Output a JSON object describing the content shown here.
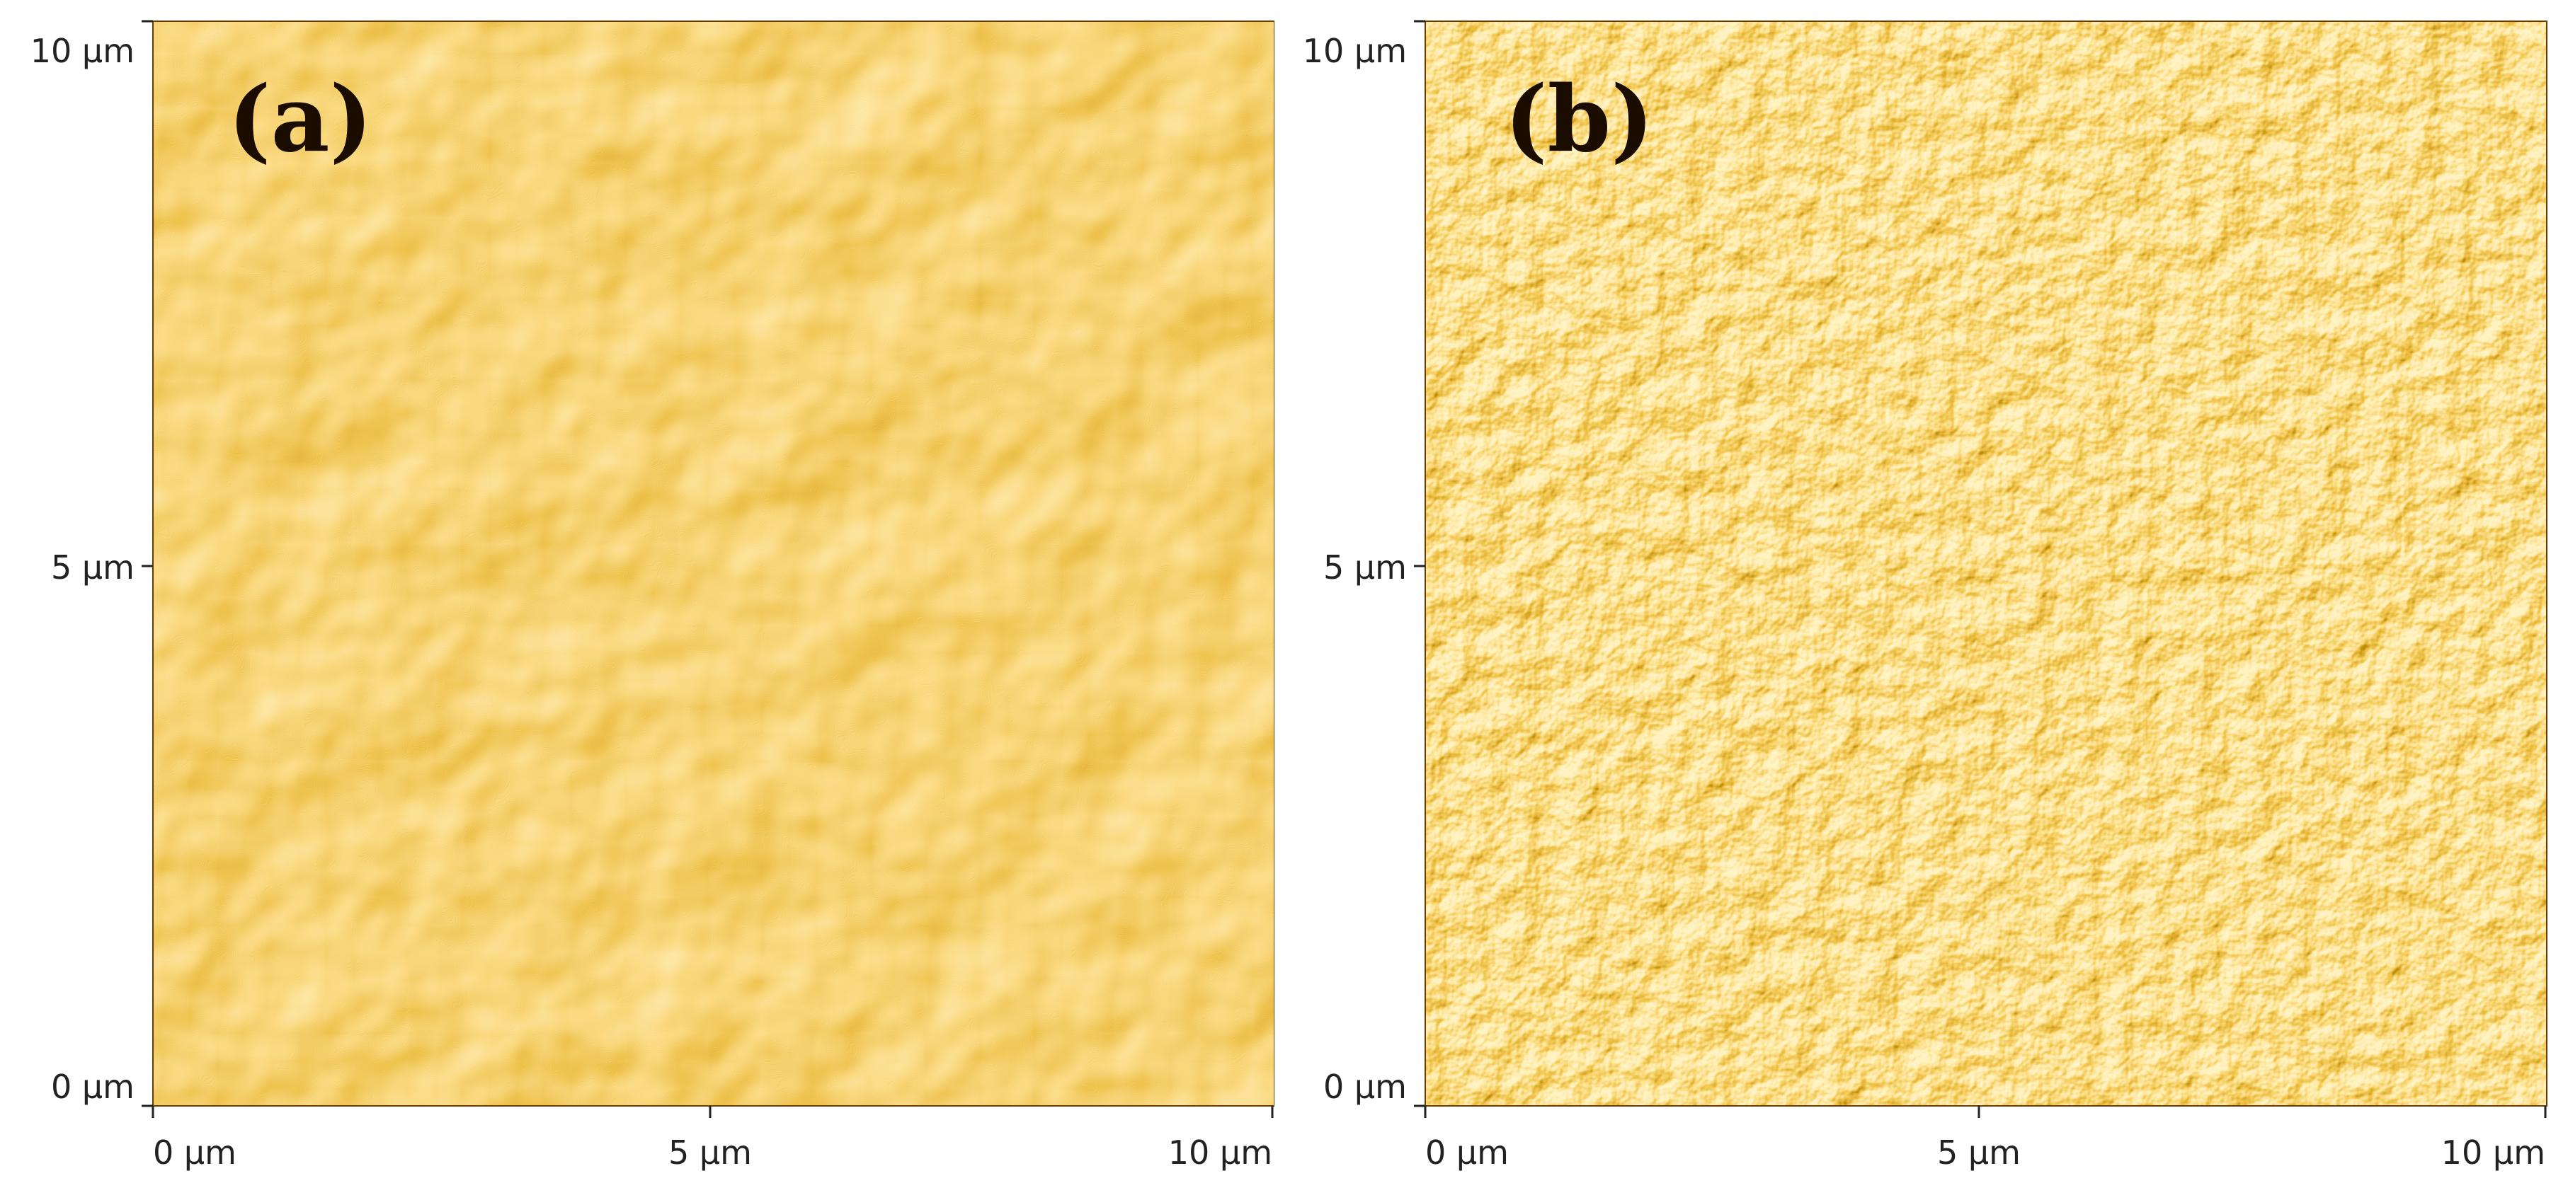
{
  "figure": {
    "panels": [
      {
        "id": "a",
        "label": "(a)",
        "x_ticks": [
          "0 µm",
          "5 µm",
          "10 µm"
        ],
        "y_ticks": [
          "10 µm",
          "5 µm",
          "0 µm"
        ],
        "texture": "large-grains",
        "palette": {
          "dark": "#7a3e00",
          "mid": "#d98512",
          "light": "#ffd070"
        }
      },
      {
        "id": "b",
        "label": "(b)",
        "x_ticks": [
          "0 µm",
          "5 µm",
          "10 µm"
        ],
        "y_ticks": [
          "10 µm",
          "5 µm",
          "0 µm"
        ],
        "texture": "fine-grains",
        "palette": {
          "dark": "#8a4a00",
          "mid": "#e39016",
          "light": "#ffe080"
        }
      }
    ]
  }
}
